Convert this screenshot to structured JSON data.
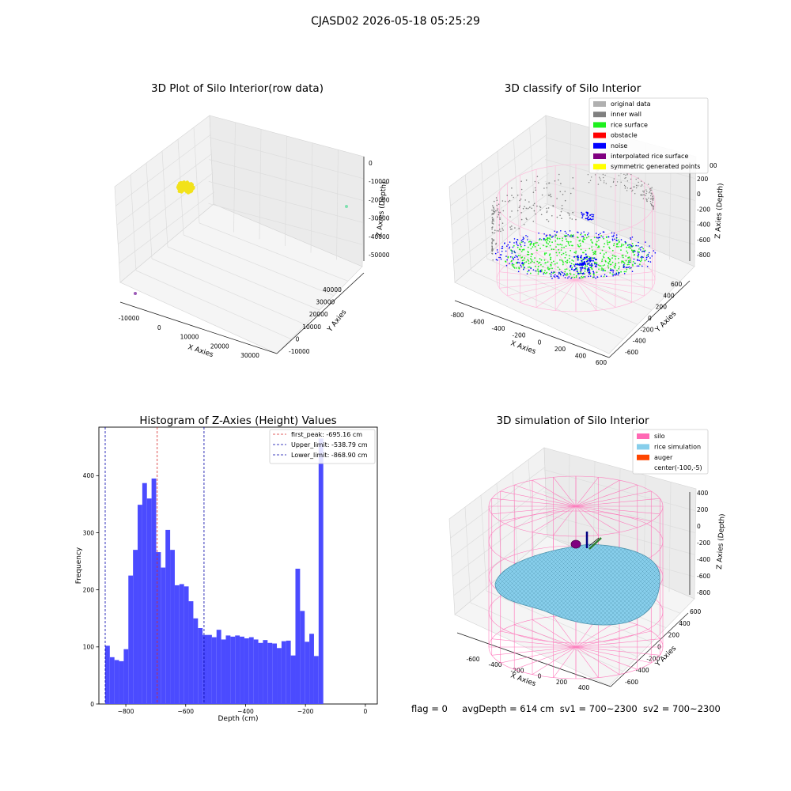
{
  "figure_title": "CJASD02 2026-05-18 05:25:29",
  "status": {
    "flag": "flag = 0",
    "avg_depth": "avgDepth = 614 cm",
    "sv1": "sv1 = 700~2300",
    "sv2": "sv2 = 700~2300"
  },
  "chart_data": [
    {
      "type": "scatter",
      "title": "3D Plot of Silo Interior(row data)",
      "xlabel": "X Axies",
      "ylabel": "Y Axies",
      "zlabel": "Z Axies (Depth)",
      "x_ticks": [
        "-10000",
        "0",
        "10000",
        "20000",
        "30000"
      ],
      "y_ticks": [
        "-10000",
        "0",
        "10000",
        "20000",
        "30000",
        "40000"
      ],
      "z_ticks": [
        "0",
        "-10000",
        "-20000",
        "-30000",
        "-40000",
        "-50000"
      ],
      "colors": {
        "cluster": "#f2e21a",
        "isolated_teal": "#7fe0b0",
        "isolated_purple": "#9b59b6"
      }
    },
    {
      "type": "scatter",
      "title": "3D classify of Silo Interior",
      "xlabel": "X Axies",
      "ylabel": "Y Axies",
      "zlabel": "Z Axies (Depth)",
      "x_ticks": [
        "-800",
        "-600",
        "-400",
        "-200",
        "0",
        "200",
        "400",
        "600"
      ],
      "y_ticks": [
        "-600",
        "-400",
        "-200",
        "0",
        "200",
        "400",
        "600"
      ],
      "z_ticks": [
        "200",
        "0",
        "-200",
        "-400",
        "-600",
        "-800"
      ],
      "z_partial_tick": "00",
      "z_top_tick": "400",
      "legend": [
        {
          "label": "original data",
          "color": "#b0b0b0"
        },
        {
          "label": "inner wall",
          "color": "#808080"
        },
        {
          "label": "rice surface",
          "color": "#1ef01e"
        },
        {
          "label": "obstacle",
          "color": "#ff0000"
        },
        {
          "label": "noise",
          "color": "#0000ff"
        },
        {
          "label": "interpolated rice surface",
          "color": "#800080"
        },
        {
          "label": "symmetric generated points",
          "color": "#ffff00"
        }
      ]
    },
    {
      "type": "bar",
      "title": "Histogram of Z-Axies (Height) Values",
      "xlabel": "Depth (cm)",
      "ylabel": "Frequency",
      "xlim": [
        -890,
        40
      ],
      "ylim": [
        0,
        485
      ],
      "x_ticks": [
        -800,
        -600,
        -400,
        -200,
        0
      ],
      "y_ticks": [
        0,
        100,
        200,
        300,
        400
      ],
      "bin_start": -869,
      "bin_width": 15.5,
      "values": [
        102,
        82,
        77,
        75,
        96,
        225,
        270,
        349,
        387,
        360,
        395,
        266,
        239,
        305,
        270,
        208,
        210,
        206,
        180,
        150,
        133,
        121,
        121,
        117,
        130,
        113,
        120,
        118,
        120,
        118,
        115,
        117,
        113,
        107,
        112,
        107,
        106,
        98,
        110,
        111,
        85,
        237,
        163,
        109,
        123,
        84,
        465
      ],
      "bar_color": "#4b4bff",
      "vlines": [
        {
          "label": "first_peak: -695.16 cm",
          "x": -695.16,
          "color": "#d62728"
        },
        {
          "label": "Upper_limit: -538.79 cm",
          "x": -538.79,
          "color": "#0000aa"
        },
        {
          "label": "Lower_limit: -868.90 cm",
          "x": -868.9,
          "color": "#0000aa"
        }
      ]
    },
    {
      "type": "surface",
      "title": "3D simulation of Silo Interior",
      "xlabel": "X Axies",
      "ylabel": "Y Axies",
      "zlabel": "Z Axies (Depth)",
      "x_ticks": [
        "-600",
        "-400",
        "-200",
        "0",
        "200",
        "400"
      ],
      "y_ticks": [
        "-600",
        "-400",
        "-200",
        "0",
        "200",
        "400",
        "600"
      ],
      "z_ticks": [
        "400",
        "200",
        "0",
        "-200",
        "-400",
        "-600",
        "-800"
      ],
      "legend": [
        {
          "label": "silo",
          "color": "#ff69b4"
        },
        {
          "label": "rice simulation",
          "color": "#87ceeb"
        },
        {
          "label": "auger",
          "color": "#ff4500"
        },
        {
          "label": "center(-100,-5)",
          "color": ""
        }
      ]
    }
  ]
}
